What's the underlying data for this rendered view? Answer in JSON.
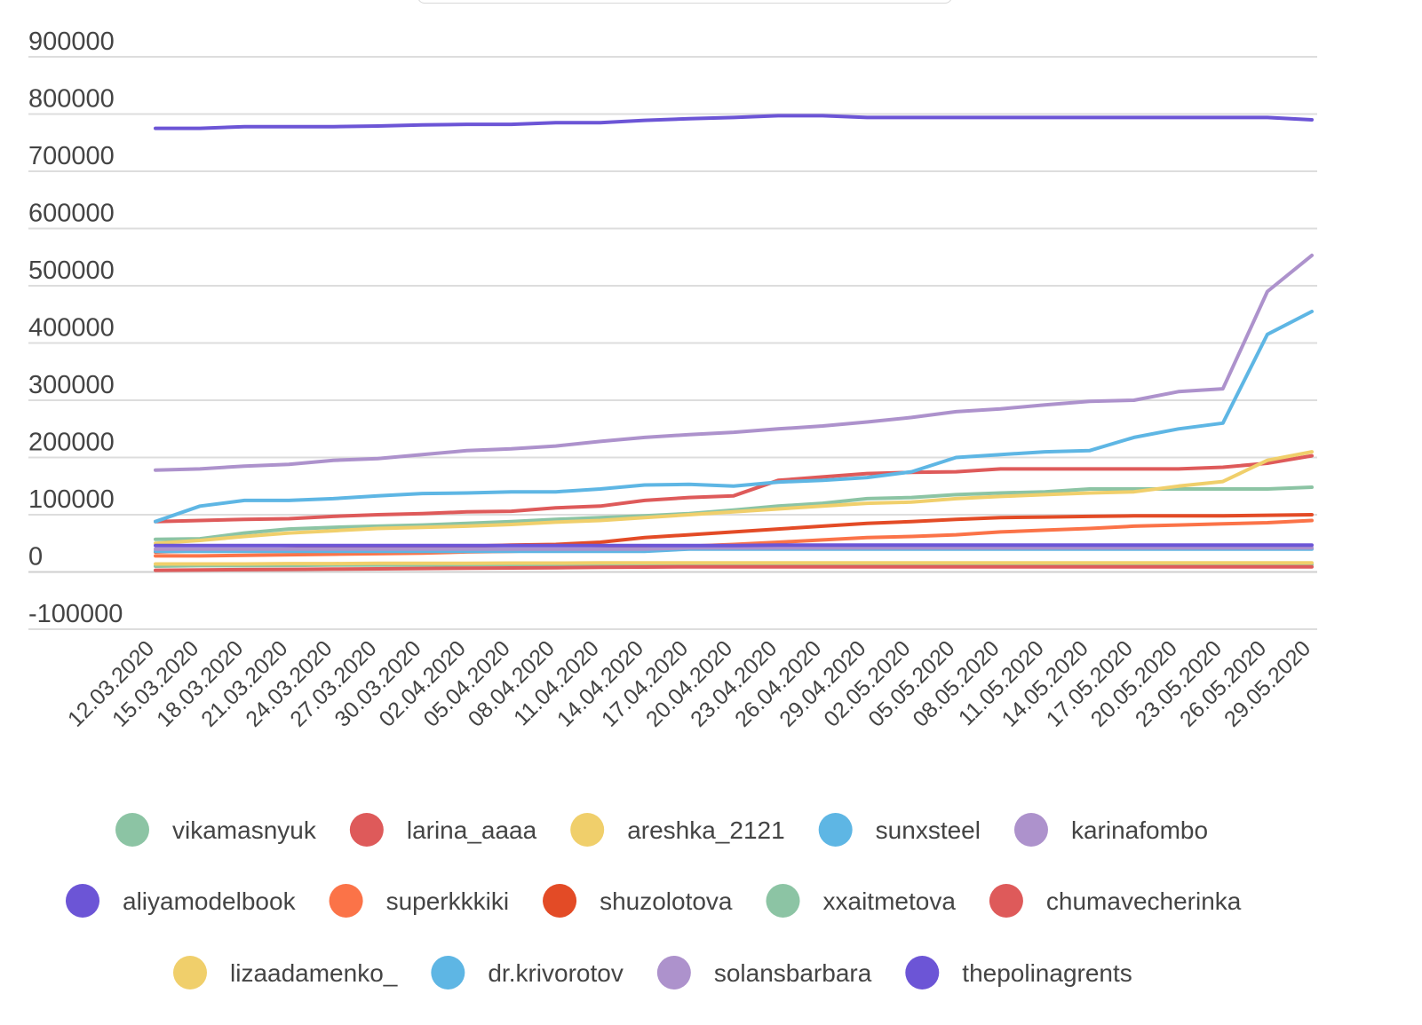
{
  "chart_data": {
    "type": "line",
    "title": "",
    "xlabel": "",
    "ylabel": "",
    "ylim": [
      -100000,
      900000
    ],
    "yticks": [
      900000,
      800000,
      700000,
      600000,
      500000,
      400000,
      300000,
      200000,
      100000,
      0,
      -100000
    ],
    "ytick_labels": [
      "900000",
      "800000",
      "700000",
      "600000",
      "500000",
      "400000",
      "300000",
      "200000",
      "100000",
      "0",
      "-100000"
    ],
    "grid": true,
    "legend_position": "bottom",
    "x_dates": [
      "12.03.2020",
      "15.03.2020",
      "18.03.2020",
      "21.03.2020",
      "24.03.2020",
      "27.03.2020",
      "30.03.2020",
      "02.04.2020",
      "05.04.2020",
      "08.04.2020",
      "11.04.2020",
      "14.04.2020",
      "17.04.2020",
      "20.04.2020",
      "23.04.2020",
      "26.04.2020",
      "29.04.2020",
      "02.05.2020",
      "05.05.2020",
      "08.05.2020",
      "11.05.2020",
      "14.05.2020",
      "17.05.2020",
      "20.05.2020",
      "23.05.2020",
      "26.05.2020",
      "29.05.2020"
    ],
    "series": [
      {
        "name": "vikamasnyuk",
        "color": "#8cc4a4",
        "values": [
          57000,
          58000,
          68000,
          75000,
          78000,
          80000,
          82000,
          85000,
          88000,
          92000,
          95000,
          98000,
          102000,
          108000,
          115000,
          120000,
          128000,
          130000,
          135000,
          138000,
          140000,
          145000,
          145000,
          145000,
          145000,
          145000,
          148000
        ]
      },
      {
        "name": "larina_aaaa",
        "color": "#de5a5a",
        "values": [
          88000,
          90000,
          92000,
          93000,
          97000,
          100000,
          102000,
          105000,
          106000,
          112000,
          115000,
          125000,
          130000,
          133000,
          160000,
          166000,
          172000,
          174000,
          175000,
          180000,
          180000,
          180000,
          180000,
          180000,
          183000,
          190000,
          203000
        ]
      },
      {
        "name": "areshka_2121",
        "color": "#f0cf6b",
        "values": [
          50000,
          55000,
          62000,
          68000,
          72000,
          76000,
          78000,
          80000,
          83000,
          87000,
          90000,
          95000,
          100000,
          105000,
          110000,
          115000,
          120000,
          122000,
          128000,
          132000,
          135000,
          138000,
          140000,
          150000,
          158000,
          195000,
          210000
        ]
      },
      {
        "name": "sunxsteel",
        "color": "#5eb6e4",
        "values": [
          88000,
          115000,
          125000,
          125000,
          128000,
          133000,
          137000,
          138000,
          140000,
          140000,
          145000,
          152000,
          153000,
          150000,
          157000,
          160000,
          165000,
          175000,
          200000,
          205000,
          210000,
          212000,
          235000,
          250000,
          260000,
          415000,
          455000
        ]
      },
      {
        "name": "karinafombo",
        "color": "#ad92cc",
        "values": [
          178000,
          180000,
          185000,
          188000,
          195000,
          198000,
          205000,
          212000,
          215000,
          220000,
          228000,
          235000,
          240000,
          244000,
          250000,
          255000,
          262000,
          270000,
          280000,
          285000,
          292000,
          298000,
          300000,
          315000,
          320000,
          490000,
          553000
        ]
      },
      {
        "name": "aliyamodelbook",
        "color": "#6c55d6",
        "values": [
          775000,
          775000,
          778000,
          778000,
          778000,
          779000,
          781000,
          782000,
          782000,
          785000,
          785000,
          789000,
          792000,
          794000,
          797000,
          797000,
          794000,
          794000,
          794000,
          794000,
          794000,
          794000,
          794000,
          794000,
          794000,
          794000,
          790000
        ]
      },
      {
        "name": "superkkkiki",
        "color": "#fb7348",
        "values": [
          28000,
          28000,
          29000,
          30000,
          31000,
          32000,
          33000,
          35000,
          36000,
          38000,
          40000,
          42000,
          45000,
          48000,
          52000,
          56000,
          60000,
          62000,
          65000,
          70000,
          73000,
          76000,
          80000,
          82000,
          84000,
          86000,
          90000
        ]
      },
      {
        "name": "shuzolotova",
        "color": "#e34b26",
        "values": [
          35000,
          37000,
          38000,
          40000,
          42000,
          44000,
          45000,
          45000,
          47000,
          48000,
          52000,
          60000,
          65000,
          70000,
          75000,
          80000,
          85000,
          88000,
          92000,
          95000,
          96000,
          97000,
          98000,
          98000,
          98000,
          99000,
          100000
        ]
      },
      {
        "name": "xxaitmetova",
        "color": "#8cc4a4",
        "values": [
          10000,
          11000,
          11000,
          11500,
          12000,
          12000,
          12000,
          12500,
          13000,
          13000,
          13000,
          13000,
          13000,
          13000,
          13000,
          13000,
          13000,
          13000,
          13000,
          13000,
          13000,
          13000,
          13000,
          13000,
          13000,
          13000,
          13000
        ]
      },
      {
        "name": "chumavecherinka",
        "color": "#de5a5a",
        "values": [
          3000,
          3500,
          4000,
          4500,
          5000,
          5500,
          6000,
          6500,
          7000,
          7500,
          8000,
          8500,
          9000,
          9000,
          9000,
          9000,
          9000,
          9000,
          9000,
          9000,
          9000,
          9000,
          9000,
          9000,
          9000,
          9000,
          9000
        ]
      },
      {
        "name": "lizaadamenko_",
        "color": "#f0cf6b",
        "values": [
          14000,
          14000,
          14000,
          14500,
          14500,
          15000,
          15000,
          15000,
          15500,
          15500,
          16000,
          16000,
          16000,
          16000,
          16000,
          16000,
          16000,
          16000,
          16000,
          16000,
          16000,
          16000,
          16000,
          16000,
          16000,
          16000,
          16000
        ]
      },
      {
        "name": "dr.krivorotov",
        "color": "#5eb6e4",
        "values": [
          36000,
          36000,
          36000,
          36000,
          36000,
          36000,
          36000,
          36000,
          36000,
          36000,
          36000,
          36000,
          40000,
          40000,
          40000,
          40000,
          40000,
          40000,
          40000,
          40000,
          40000,
          40000,
          40000,
          40000,
          40000,
          40000,
          40000
        ]
      },
      {
        "name": "solansbarbara",
        "color": "#ad92cc",
        "values": [
          40000,
          40000,
          40000,
          40000,
          40000,
          40000,
          40000,
          40000,
          40000,
          40000,
          40000,
          40000,
          42000,
          42000,
          42000,
          42000,
          42000,
          42000,
          42000,
          42000,
          42000,
          42000,
          42000,
          42000,
          42000,
          42000,
          42000
        ]
      },
      {
        "name": "thepolinagrents",
        "color": "#6c55d6",
        "values": [
          46000,
          46000,
          46000,
          46000,
          46000,
          46000,
          46000,
          46000,
          46000,
          46000,
          46000,
          46000,
          46000,
          46000,
          47000,
          47000,
          47000,
          47000,
          47000,
          47000,
          47000,
          47000,
          47000,
          47000,
          47000,
          47000,
          47000
        ]
      }
    ]
  }
}
